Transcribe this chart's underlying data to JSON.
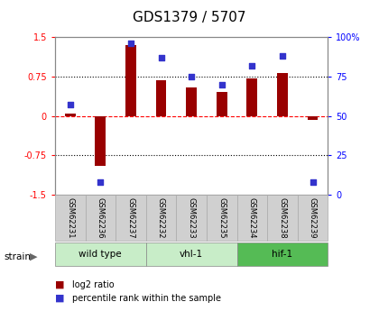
{
  "title": "GDS1379 / 5707",
  "samples": [
    "GSM62231",
    "GSM62236",
    "GSM62237",
    "GSM62232",
    "GSM62233",
    "GSM62235",
    "GSM62234",
    "GSM62238",
    "GSM62239"
  ],
  "log2_ratio": [
    0.05,
    -0.95,
    1.35,
    0.68,
    0.55,
    0.45,
    0.72,
    0.82,
    -0.08
  ],
  "percentile_rank": [
    57,
    8,
    96,
    87,
    75,
    70,
    82,
    88,
    8
  ],
  "groups": [
    {
      "label": "wild type",
      "start": 0,
      "end": 3,
      "color": "#c8edc8"
    },
    {
      "label": "vhl-1",
      "start": 3,
      "end": 6,
      "color": "#c8edc8"
    },
    {
      "label": "hif-1",
      "start": 6,
      "end": 9,
      "color": "#55bb55"
    }
  ],
  "bar_color": "#990000",
  "dot_color": "#3333cc",
  "ylim_left": [
    -1.5,
    1.5
  ],
  "ylim_right": [
    0,
    100
  ],
  "yticks_left": [
    -1.5,
    -0.75,
    0,
    0.75,
    1.5
  ],
  "ytick_labels_left": [
    "-1.5",
    "-0.75",
    "0",
    "0.75",
    "1.5"
  ],
  "yticks_right": [
    0,
    25,
    50,
    75,
    100
  ],
  "ytick_labels_right": [
    "0",
    "25",
    "50",
    "75",
    "100%"
  ],
  "background_color": "#ffffff",
  "title_fontsize": 11,
  "legend_items": [
    "log2 ratio",
    "percentile rank within the sample"
  ],
  "bar_width": 0.35
}
